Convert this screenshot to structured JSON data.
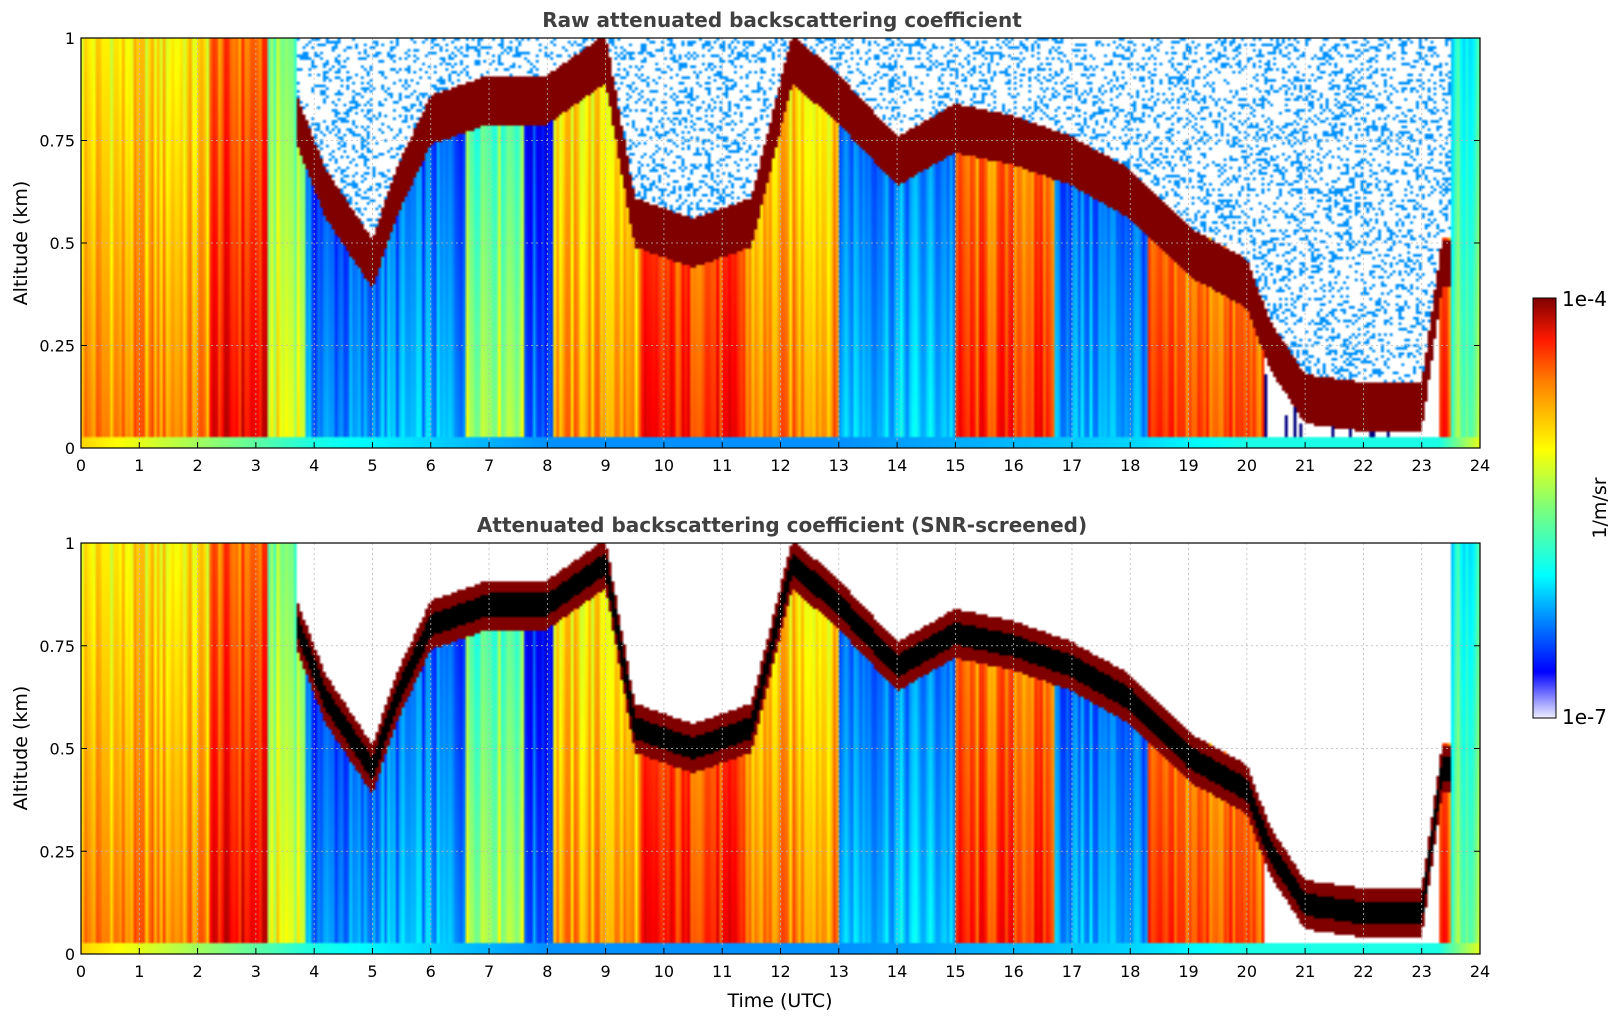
{
  "figure": {
    "xlabel": "Time (UTC)",
    "colorbar": {
      "label": "1/m/sr",
      "max_label": "1e-4",
      "min_label": "1e-7",
      "scale": "log",
      "colormap": "jet"
    }
  },
  "chart_data": [
    {
      "type": "heatmap",
      "title": "Raw attenuated backscattering coefficient",
      "xlabel": "",
      "ylabel": "Altitude (km)",
      "xlim": [
        0,
        24
      ],
      "ylim": [
        0,
        1
      ],
      "xticks": [
        "0",
        "1",
        "2",
        "3",
        "4",
        "5",
        "6",
        "7",
        "8",
        "9",
        "10",
        "11",
        "12",
        "13",
        "14",
        "15",
        "16",
        "17",
        "18",
        "19",
        "20",
        "21",
        "22",
        "23",
        "24"
      ],
      "yticks": [
        "0",
        "0.25",
        "0.5",
        "0.75",
        "1"
      ],
      "grid": true,
      "screened": false,
      "surface_level_log10": [
        [
          0,
          -5.0
        ],
        [
          4,
          -5.8
        ],
        [
          8,
          -6.2
        ],
        [
          13,
          -6.2
        ],
        [
          18,
          -6.0
        ],
        [
          20,
          -5.8
        ],
        [
          23.3,
          -5.8
        ],
        [
          24,
          -5.2
        ]
      ],
      "column_regimes": [
        {
          "t0": 0.0,
          "t1": 2.2,
          "log10": -4.75,
          "desc": "orange"
        },
        {
          "t0": 2.2,
          "t1": 3.2,
          "log10": -4.35,
          "desc": "red"
        },
        {
          "t0": 3.2,
          "t1": 3.85,
          "log10": -5.15,
          "desc": "yellow-orange"
        },
        {
          "t0": 3.85,
          "t1": 5.0,
          "log10": -6.2,
          "desc": "blue"
        },
        {
          "t0": 5.0,
          "t1": 6.6,
          "log10": -6.1,
          "desc": "blue-cyan"
        },
        {
          "t0": 6.6,
          "t1": 7.6,
          "log10": -5.3,
          "desc": "mixed"
        },
        {
          "t0": 7.6,
          "t1": 8.1,
          "log10": -6.3,
          "desc": "blue"
        },
        {
          "t0": 8.1,
          "t1": 9.6,
          "log10": -4.8,
          "desc": "orange"
        },
        {
          "t0": 9.6,
          "t1": 11.4,
          "log10": -4.45,
          "desc": "red"
        },
        {
          "t0": 11.4,
          "t1": 13.0,
          "log10": -4.75,
          "desc": "orange"
        },
        {
          "t0": 13.0,
          "t1": 15.0,
          "log10": -6.0,
          "desc": "blue-cyan"
        },
        {
          "t0": 15.0,
          "t1": 16.7,
          "log10": -4.5,
          "desc": "red"
        },
        {
          "t0": 16.7,
          "t1": 18.3,
          "log10": -6.1,
          "desc": "blue"
        },
        {
          "t0": 18.3,
          "t1": 20.3,
          "log10": -4.6,
          "desc": "orange-red"
        },
        {
          "t0": 20.3,
          "t1": 23.3,
          "log10": -7.2,
          "desc": "clear"
        },
        {
          "t0": 23.3,
          "t1": 23.5,
          "log10": -4.6,
          "desc": "red"
        },
        {
          "t0": 23.5,
          "t1": 24.0,
          "log10": -5.5,
          "desc": "green"
        }
      ],
      "cloud_base_km": [
        [
          3.7,
          0.8
        ],
        [
          4.2,
          0.62
        ],
        [
          5.0,
          0.45
        ],
        [
          5.4,
          0.62
        ],
        [
          6.0,
          0.8
        ],
        [
          7.0,
          0.85
        ],
        [
          8.0,
          0.85
        ],
        [
          9.0,
          0.95
        ],
        [
          9.5,
          0.55
        ],
        [
          10.5,
          0.5
        ],
        [
          11.5,
          0.55
        ],
        [
          12.2,
          0.95
        ],
        [
          13.0,
          0.85
        ],
        [
          14.0,
          0.7
        ],
        [
          15.0,
          0.78
        ],
        [
          16.0,
          0.75
        ],
        [
          17.0,
          0.7
        ],
        [
          18.0,
          0.62
        ],
        [
          19.0,
          0.48
        ],
        [
          20.0,
          0.4
        ],
        [
          20.4,
          0.25
        ],
        [
          21.0,
          0.12
        ],
        [
          22.0,
          0.1
        ],
        [
          23.0,
          0.1
        ],
        [
          23.35,
          0.45
        ]
      ],
      "cloud_thickness_km": 0.06
    },
    {
      "type": "heatmap",
      "title": "Attenuated backscattering coefficient (SNR-screened)",
      "xlabel": "Time (UTC)",
      "ylabel": "Altitude (km)",
      "xlim": [
        0,
        24
      ],
      "ylim": [
        0,
        1
      ],
      "xticks": [
        "0",
        "1",
        "2",
        "3",
        "4",
        "5",
        "6",
        "7",
        "8",
        "9",
        "10",
        "11",
        "12",
        "13",
        "14",
        "15",
        "16",
        "17",
        "18",
        "19",
        "20",
        "21",
        "22",
        "23",
        "24"
      ],
      "yticks": [
        "0",
        "0.25",
        "0.5",
        "0.75",
        "1"
      ],
      "grid": true,
      "screened": true,
      "masked_color": "#ffffff",
      "saturated_color": "#000000",
      "surface_level_log10": [
        [
          0,
          -5.0
        ],
        [
          4,
          -5.8
        ],
        [
          8,
          -6.2
        ],
        [
          13,
          -6.2
        ],
        [
          18,
          -6.0
        ],
        [
          20,
          -5.8
        ],
        [
          23.3,
          -5.8
        ],
        [
          24,
          -5.2
        ]
      ],
      "column_regimes": [
        {
          "t0": 0.0,
          "t1": 2.2,
          "log10": -4.75,
          "desc": "orange"
        },
        {
          "t0": 2.2,
          "t1": 3.2,
          "log10": -4.35,
          "desc": "red"
        },
        {
          "t0": 3.2,
          "t1": 3.85,
          "log10": -5.15,
          "desc": "yellow-orange"
        },
        {
          "t0": 3.85,
          "t1": 5.0,
          "log10": -6.2,
          "desc": "blue"
        },
        {
          "t0": 5.0,
          "t1": 6.6,
          "log10": -6.1,
          "desc": "blue-cyan"
        },
        {
          "t0": 6.6,
          "t1": 7.6,
          "log10": -5.3,
          "desc": "mixed"
        },
        {
          "t0": 7.6,
          "t1": 8.1,
          "log10": -6.3,
          "desc": "blue"
        },
        {
          "t0": 8.1,
          "t1": 9.6,
          "log10": -4.8,
          "desc": "orange"
        },
        {
          "t0": 9.6,
          "t1": 11.4,
          "log10": -4.45,
          "desc": "red"
        },
        {
          "t0": 11.4,
          "t1": 13.0,
          "log10": -4.75,
          "desc": "orange"
        },
        {
          "t0": 13.0,
          "t1": 15.0,
          "log10": -6.0,
          "desc": "blue-cyan"
        },
        {
          "t0": 15.0,
          "t1": 16.7,
          "log10": -4.5,
          "desc": "red"
        },
        {
          "t0": 16.7,
          "t1": 18.3,
          "log10": -6.1,
          "desc": "blue"
        },
        {
          "t0": 18.3,
          "t1": 20.3,
          "log10": -4.6,
          "desc": "orange-red"
        },
        {
          "t0": 20.3,
          "t1": 23.3,
          "log10": -7.2,
          "desc": "clear"
        },
        {
          "t0": 23.3,
          "t1": 23.5,
          "log10": -4.6,
          "desc": "red"
        },
        {
          "t0": 23.5,
          "t1": 24.0,
          "log10": -5.5,
          "desc": "green"
        }
      ],
      "cloud_base_km": [
        [
          3.7,
          0.8
        ],
        [
          4.2,
          0.62
        ],
        [
          5.0,
          0.45
        ],
        [
          5.4,
          0.62
        ],
        [
          6.0,
          0.8
        ],
        [
          7.0,
          0.85
        ],
        [
          8.0,
          0.85
        ],
        [
          9.0,
          0.95
        ],
        [
          9.5,
          0.55
        ],
        [
          10.5,
          0.5
        ],
        [
          11.5,
          0.55
        ],
        [
          12.2,
          0.95
        ],
        [
          13.0,
          0.85
        ],
        [
          14.0,
          0.7
        ],
        [
          15.0,
          0.78
        ],
        [
          16.0,
          0.75
        ],
        [
          17.0,
          0.7
        ],
        [
          18.0,
          0.62
        ],
        [
          19.0,
          0.48
        ],
        [
          20.0,
          0.4
        ],
        [
          20.4,
          0.25
        ],
        [
          21.0,
          0.12
        ],
        [
          22.0,
          0.1
        ],
        [
          23.0,
          0.1
        ],
        [
          23.35,
          0.45
        ]
      ],
      "cloud_thickness_km": 0.06
    }
  ]
}
